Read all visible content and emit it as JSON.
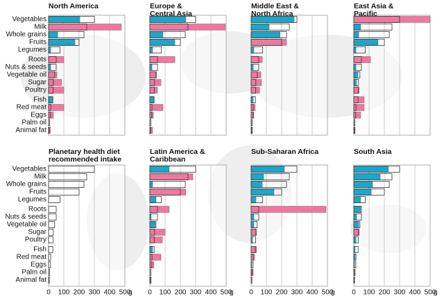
{
  "chart_data": [
    {
      "type": "bar",
      "title": "North America",
      "categories": [
        "Vegetables",
        "Milk",
        "Whole grains",
        "Fruits",
        "Legumes",
        "Roots",
        "Nuts & seeds",
        "Vegetable oil",
        "Sugar",
        "Poultry",
        "Fish",
        "Red meat",
        "Eggs",
        "Palm oil",
        "Animal fat"
      ],
      "xlim": [
        0,
        500
      ],
      "xticks": [
        0,
        100,
        200,
        300,
        400,
        500
      ],
      "series": [
        {
          "values": [
            205,
            477,
            60,
            173,
            14,
            100,
            14,
            55,
            86,
            100,
            25,
            100,
            32,
            1,
            12
          ],
          "colors": [
            "#1da6c9",
            "#f0779f",
            "#1da6c9",
            "#1da6c9",
            "#1da6c9",
            "#f0779f",
            "#1da6c9",
            "#f0779f",
            "#f0779f",
            "#f0779f",
            "#1da6c9",
            "#f0779f",
            "#f0779f",
            "#1da6c9",
            "#f0779f"
          ]
        },
        {
          "values": [
            300,
            250,
            232,
            200,
            75,
            50,
            50,
            40,
            31,
            29,
            28,
            14,
            13,
            6.8,
            5
          ],
          "color": "none"
        }
      ]
    },
    {
      "type": "bar",
      "title": "Europe &\nCentral Asia",
      "xlim": [
        0,
        500
      ],
      "xticks": [
        0,
        100,
        200,
        300,
        400,
        500
      ],
      "series": [
        {
          "values": [
            236,
            495,
            86,
            164,
            18,
            164,
            14,
            45,
            73,
            50,
            27,
            86,
            23,
            1,
            18
          ],
          "colors": [
            "#1da6c9",
            "#f0779f",
            "#1da6c9",
            "#1da6c9",
            "#1da6c9",
            "#f0779f",
            "#1da6c9",
            "#f0779f",
            "#f0779f",
            "#f0779f",
            "#1da6c9",
            "#f0779f",
            "#f0779f",
            "#1da6c9",
            "#f0779f"
          ]
        },
        {
          "values": [
            300,
            250,
            232,
            200,
            75,
            50,
            50,
            40,
            31,
            29,
            28,
            14,
            13,
            6.8,
            5
          ],
          "color": "none"
        }
      ]
    },
    {
      "type": "bar",
      "title": "Middle East &\nNorth Africa",
      "xlim": [
        0,
        500
      ],
      "xticks": [
        0,
        100,
        200,
        300,
        400,
        500
      ],
      "series": [
        {
          "values": [
            282,
            118,
            190,
            232,
            18,
            73,
            14,
            64,
            68,
            55,
            14,
            27,
            18,
            2,
            9
          ],
          "colors": [
            "#1da6c9",
            "#1da6c9",
            "#1da6c9",
            "#f0779f",
            "#1da6c9",
            "#f0779f",
            "#1da6c9",
            "#f0779f",
            "#f0779f",
            "#f0779f",
            "#1da6c9",
            "#f0779f",
            "#f0779f",
            "#1da6c9",
            "#f0779f"
          ]
        },
        {
          "values": [
            300,
            250,
            232,
            200,
            75,
            50,
            50,
            40,
            31,
            29,
            28,
            14,
            13,
            6.8,
            5
          ],
          "color": "none"
        }
      ]
    },
    {
      "type": "bar",
      "title": "East Asia &\nPacific",
      "xlim": [
        0,
        500
      ],
      "xticks": [
        0,
        100,
        200,
        300,
        400,
        500
      ],
      "series": [
        {
          "values": [
            500,
            45,
            32,
            159,
            14,
            109,
            14,
            27,
            18,
            36,
            68,
            68,
            45,
            2,
            9
          ],
          "colors": [
            "#f0779f",
            "#1da6c9",
            "#1da6c9",
            "#1da6c9",
            "#1da6c9",
            "#f0779f",
            "#1da6c9",
            "#1da6c9",
            "#1da6c9",
            "#f0779f",
            "#f0779f",
            "#f0779f",
            "#f0779f",
            "#1da6c9",
            "#f0779f"
          ]
        },
        {
          "values": [
            300,
            250,
            232,
            200,
            75,
            50,
            50,
            40,
            31,
            29,
            28,
            14,
            13,
            6.8,
            5
          ],
          "color": "none"
        }
      ]
    },
    {
      "type": "bar",
      "title": "Planetary health diet\nrecommended intake",
      "categories": [
        "Vegetables",
        "Milk",
        "Whole grains",
        "Fruits",
        "Legumes",
        "Roots",
        "Nuts & seeds",
        "Vegetable oil",
        "Sugar",
        "Poultry",
        "Fish",
        "Red meat",
        "Eggs",
        "Palm oil",
        "Animal fat"
      ],
      "xlim": [
        0,
        500
      ],
      "xticks": [
        0,
        100,
        200,
        300,
        400,
        500
      ],
      "xtick_labels": true,
      "xunit": "g",
      "series": [
        {
          "values": [
            300,
            250,
            232,
            200,
            75,
            50,
            50,
            40,
            31,
            29,
            28,
            14,
            13,
            6.8,
            5
          ],
          "color": "none"
        }
      ]
    },
    {
      "type": "bar",
      "title": "Latin America &\nCaribbean",
      "xlim": [
        0,
        500
      ],
      "xticks": [
        0,
        100,
        200,
        300,
        400,
        500
      ],
      "xtick_labels": true,
      "xunit": "g",
      "series": [
        {
          "values": [
            127,
            282,
            18,
            236,
            41,
            127,
            9,
            35,
            100,
            82,
            18,
            73,
            27,
            1,
            9
          ],
          "colors": [
            "#1da6c9",
            "#f0779f",
            "#1da6c9",
            "#f0779f",
            "#1da6c9",
            "#f0779f",
            "#1da6c9",
            "#1da6c9",
            "#f0779f",
            "#f0779f",
            "#1da6c9",
            "#f0779f",
            "#f0779f",
            "#1da6c9",
            "#f0779f"
          ]
        },
        {
          "values": [
            300,
            250,
            232,
            200,
            75,
            50,
            50,
            40,
            31,
            29,
            28,
            14,
            13,
            6.8,
            5
          ],
          "color": "none"
        }
      ]
    },
    {
      "type": "bar",
      "title": "Sub-Saharan Africa",
      "xlim": [
        0,
        500
      ],
      "xticks": [
        0,
        100,
        200,
        300,
        400,
        500
      ],
      "xtick_labels": true,
      "xunit": "g",
      "series": [
        {
          "values": [
            218,
            82,
            73,
            150,
            32,
            491,
            18,
            18,
            36,
            9,
            36,
            23,
            5,
            14,
            1
          ],
          "colors": [
            "#1da6c9",
            "#1da6c9",
            "#1da6c9",
            "#1da6c9",
            "#1da6c9",
            "#f0779f",
            "#1da6c9",
            "#1da6c9",
            "#f0779f",
            "#1da6c9",
            "#f0779f",
            "#f0779f",
            "#1da6c9",
            "#f0779f",
            "#1da6c9"
          ]
        },
        {
          "values": [
            300,
            250,
            232,
            200,
            75,
            50,
            50,
            40,
            31,
            29,
            28,
            14,
            13,
            6.8,
            5
          ],
          "color": "none"
        }
      ]
    },
    {
      "type": "bar",
      "title": "South Asia",
      "xlim": [
        0,
        500
      ],
      "xticks": [
        0,
        100,
        200,
        300,
        400,
        500
      ],
      "xtick_labels": true,
      "xunit": "g",
      "series": [
        {
          "values": [
            227,
            173,
            123,
            114,
            45,
            45,
            18,
            32,
            36,
            14,
            9,
            9,
            5,
            9,
            3
          ],
          "colors": [
            "#1da6c9",
            "#1da6c9",
            "#1da6c9",
            "#1da6c9",
            "#1da6c9",
            "#1da6c9",
            "#1da6c9",
            "#1da6c9",
            "#f0779f",
            "#1da6c9",
            "#1da6c9",
            "#1da6c9",
            "#1da6c9",
            "#f0779f",
            "#1da6c9"
          ]
        },
        {
          "values": [
            300,
            250,
            232,
            200,
            75,
            50,
            50,
            40,
            31,
            29,
            28,
            14,
            13,
            6.8,
            5
          ],
          "color": "none"
        }
      ]
    }
  ]
}
